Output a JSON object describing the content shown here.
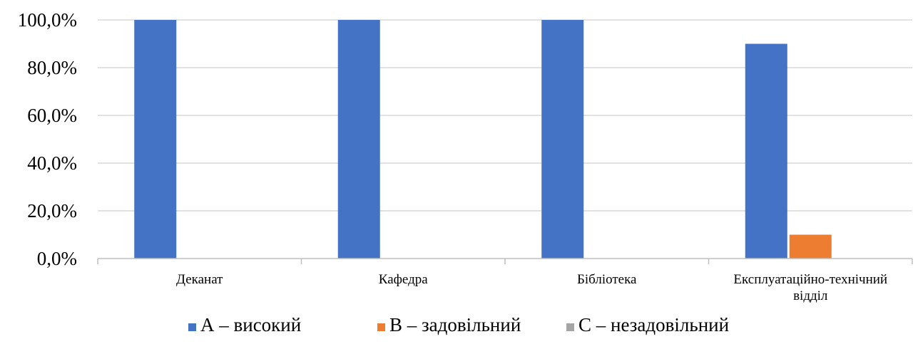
{
  "chart_data": {
    "type": "bar",
    "categories": [
      [
        "Деканат"
      ],
      [
        "Кафедра"
      ],
      [
        "Бібліотека"
      ],
      [
        "Експлуатаційно-технічний",
        "відділ"
      ]
    ],
    "series": [
      {
        "name": "А – високий",
        "color": "#4472C4",
        "values": [
          100.0,
          100.0,
          100.0,
          90.0
        ]
      },
      {
        "name": "В – задовільний",
        "color": "#ED7D31",
        "values": [
          0.0,
          0.0,
          0.0,
          10.0
        ]
      },
      {
        "name": "С – незадовільний",
        "color": "#A5A5A5",
        "values": [
          0.0,
          0.0,
          0.0,
          0.0
        ]
      }
    ],
    "y_ticks": [
      "0,0%",
      "20,0%",
      "40,0%",
      "60,0%",
      "80,0%",
      "100,0%"
    ],
    "ylim": [
      0,
      100
    ],
    "grid": true,
    "legend": "bottom"
  }
}
